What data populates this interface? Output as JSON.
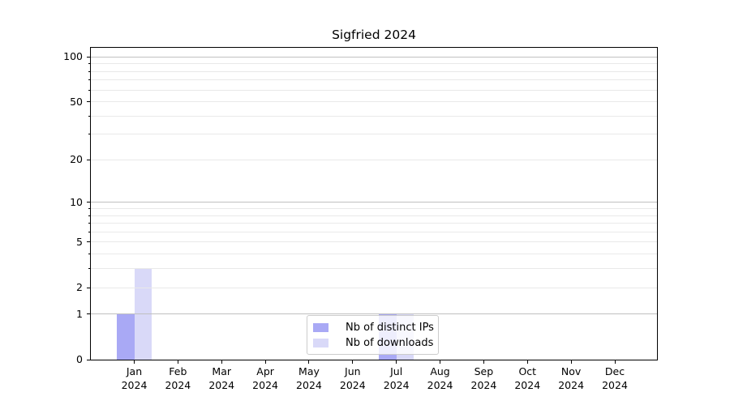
{
  "chart_data": {
    "type": "bar",
    "title": "Sigfried 2024",
    "categories": [
      "Jan",
      "Feb",
      "Mar",
      "Apr",
      "May",
      "Jun",
      "Jul",
      "Aug",
      "Sep",
      "Oct",
      "Nov",
      "Dec"
    ],
    "category_year": "2024",
    "series": [
      {
        "name": "Nb of distinct IPs",
        "color": "#a9a9f5",
        "values": [
          1,
          0,
          0,
          0,
          0,
          0,
          1,
          0,
          0,
          0,
          0,
          0
        ]
      },
      {
        "name": "Nb of downloads",
        "color": "#d9d9f8",
        "values": [
          3,
          0,
          0,
          0,
          0,
          0,
          1,
          0,
          0,
          0,
          0,
          0
        ]
      }
    ],
    "yscale": "log1p",
    "ylim": [
      0,
      115
    ],
    "yticks": [
      0,
      1,
      2,
      5,
      10,
      20,
      50,
      100
    ],
    "major_gridlines": [
      1,
      10,
      100
    ],
    "minor_gridlines": [
      2,
      3,
      4,
      5,
      6,
      7,
      8,
      9,
      20,
      30,
      40,
      50,
      60,
      70,
      80,
      90
    ],
    "grid": true,
    "legend": {
      "position": "lower center"
    },
    "colors": {
      "major_grid": "#c0c0c0",
      "minor_grid": "#e9e9e9",
      "spine": "#000000",
      "text": "#000000",
      "background": "#ffffff"
    }
  }
}
